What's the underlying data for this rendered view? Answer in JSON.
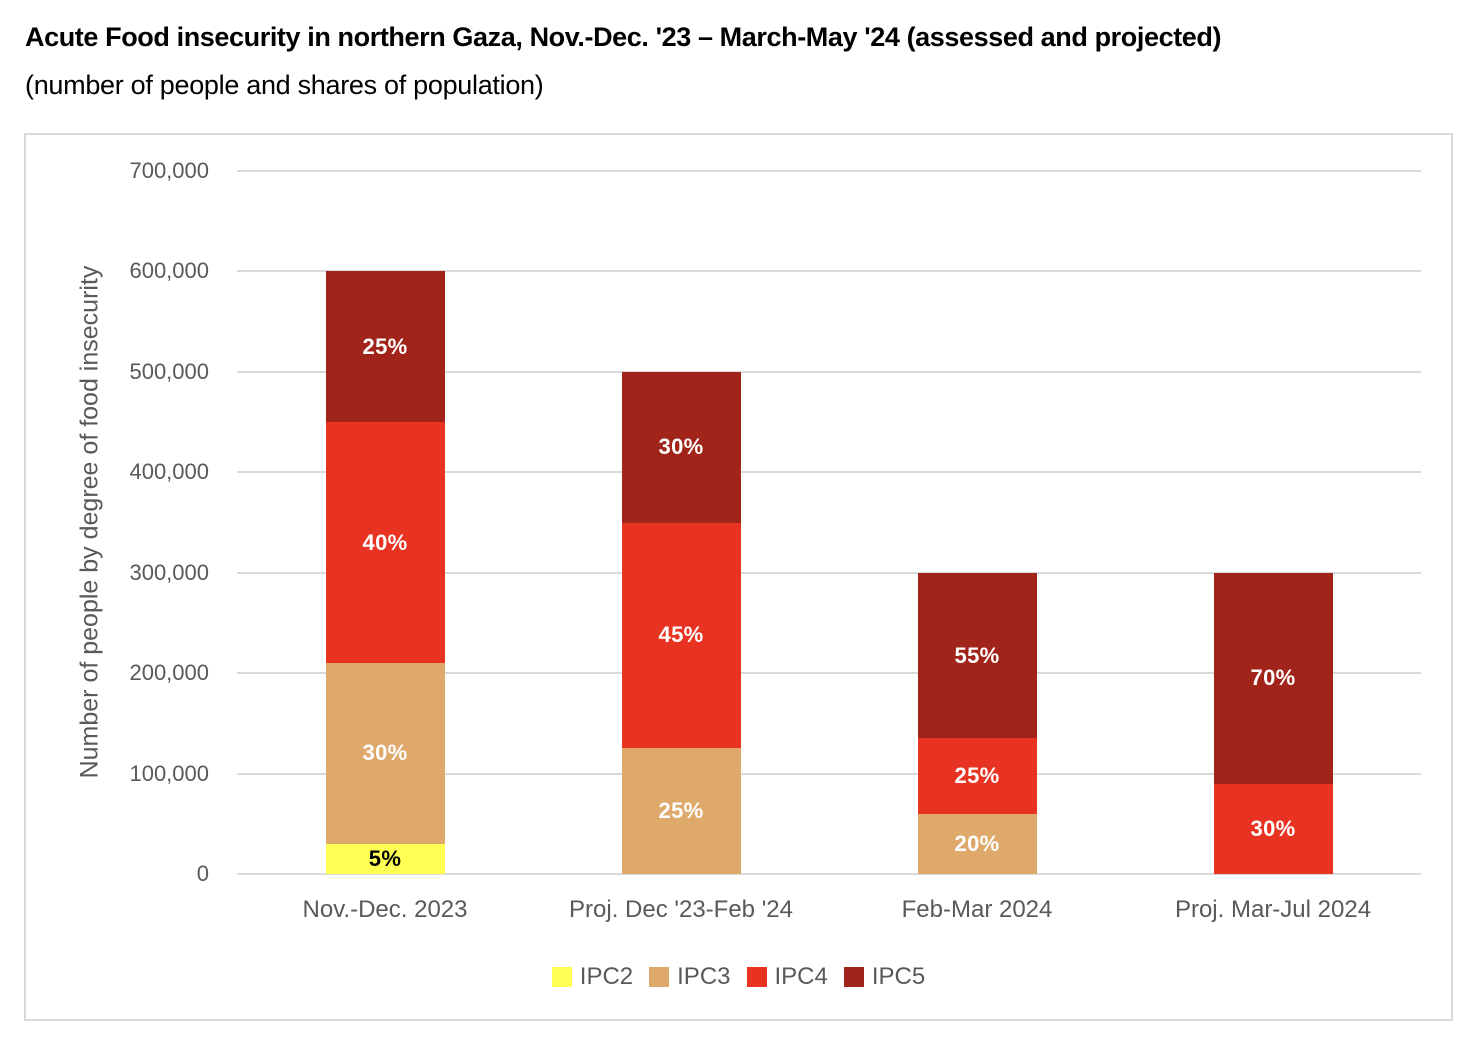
{
  "title": "Acute Food insecurity in northern Gaza, Nov.-Dec. '23 – March-May '24 (assessed and projected)",
  "subtitle": "(number of people and shares of population)",
  "colors": {
    "ipc2": "#FFFF54",
    "ipc3": "#E0A96C",
    "ipc4": "#E83323",
    "ipc5": "#A0241A",
    "gridline": "#D9D9D9",
    "axis_text": "#595959",
    "frame_border": "#D9D9D9"
  },
  "chart_data": {
    "type": "bar",
    "stacked": true,
    "title": "Acute Food insecurity in northern Gaza, Nov.-Dec. '23 – March-May '24 (assessed and projected)",
    "subtitle": "(number of people and shares of population)",
    "xlabel": "",
    "ylabel": "Number of people by degree of food insecurity",
    "ylim": [
      0,
      700000
    ],
    "ytick_step": 100000,
    "ytick_labels": [
      "0",
      "100,000",
      "200,000",
      "300,000",
      "400,000",
      "500,000",
      "600,000",
      "700,000"
    ],
    "grid": true,
    "legend_position": "bottom",
    "categories": [
      "Nov.-Dec. 2023",
      "Proj. Dec '23-Feb '24",
      "Feb-Mar 2024",
      "Proj. Mar-Jul 2024"
    ],
    "totals": [
      600000,
      500000,
      300000,
      300000
    ],
    "series": [
      {
        "name": "IPC2",
        "color": "#FFFF54",
        "label_color": "#000000",
        "values": [
          30000,
          0,
          0,
          0
        ],
        "share_labels": [
          "5%",
          "",
          "",
          ""
        ]
      },
      {
        "name": "IPC3",
        "color": "#E0A96C",
        "label_color": "#FFFFFF",
        "values": [
          180000,
          125000,
          60000,
          0
        ],
        "share_labels": [
          "30%",
          "25%",
          "20%",
          ""
        ]
      },
      {
        "name": "IPC4",
        "color": "#E83323",
        "label_color": "#FFFFFF",
        "values": [
          240000,
          225000,
          75000,
          90000
        ],
        "share_labels": [
          "40%",
          "45%",
          "25%",
          "30%"
        ]
      },
      {
        "name": "IPC5",
        "color": "#A0241A",
        "label_color": "#FFFFFF",
        "values": [
          150000,
          150000,
          165000,
          210000
        ],
        "share_labels": [
          "25%",
          "30%",
          "55%",
          "70%"
        ]
      }
    ]
  }
}
